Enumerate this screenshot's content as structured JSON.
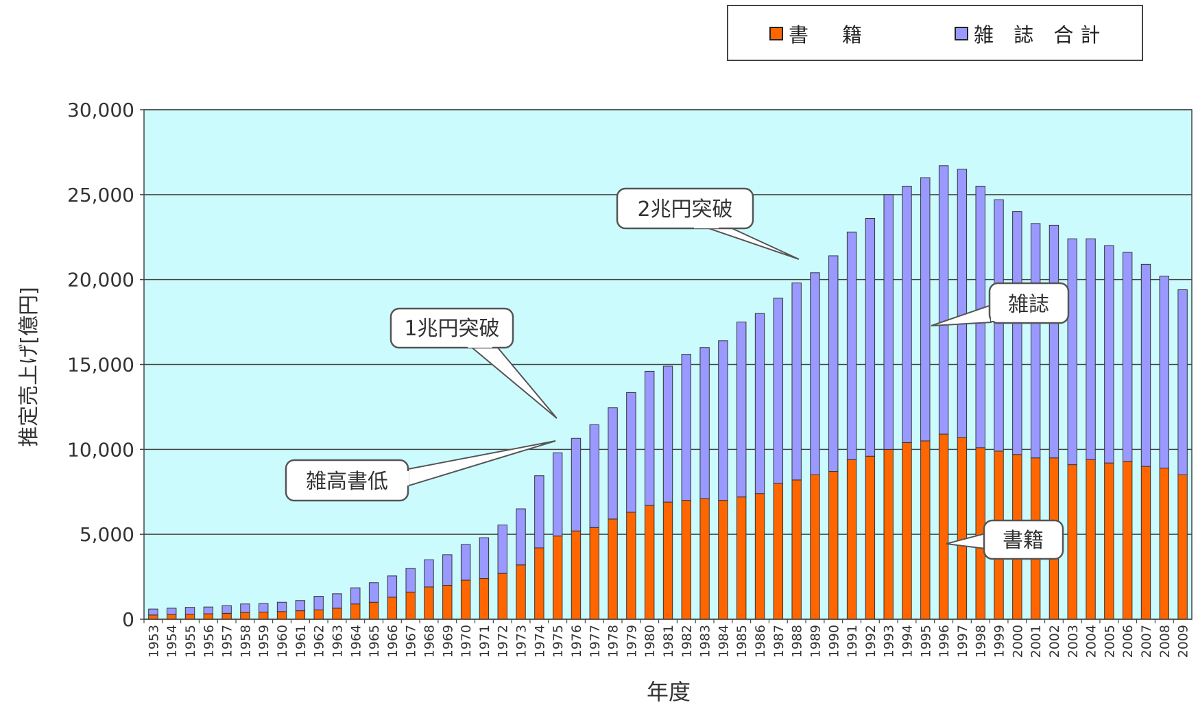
{
  "colors": {
    "plot_bg": "#ccfbfd",
    "books": "#ff6600",
    "magazines": "#9999ff",
    "gridline": "#444444",
    "bar_outline": "#333333"
  },
  "legend": {
    "books_label": "書　籍",
    "magazines_label": "雑 誌 合計"
  },
  "annotations": {
    "one_trillion": "1兆円突破",
    "two_trillion": "2兆円突破",
    "zakkou_shotei": "雑高書低",
    "magazines": "雑誌",
    "books": "書籍"
  },
  "chart_data": {
    "type": "bar",
    "stacked": true,
    "xlabel": "年度",
    "ylabel": "推定売上げ[億円]",
    "ylim": [
      0,
      30000
    ],
    "yticks": [
      0,
      5000,
      10000,
      15000,
      20000,
      25000,
      30000
    ],
    "ytick_labels": [
      "0",
      "5,000",
      "10,000",
      "15,000",
      "20,000",
      "25,000",
      "30,000"
    ],
    "grid": true,
    "legend_position": "top-right",
    "categories": [
      "1953",
      "1954",
      "1955",
      "1956",
      "1957",
      "1958",
      "1959",
      "1960",
      "1961",
      "1962",
      "1963",
      "1964",
      "1965",
      "1966",
      "1967",
      "1968",
      "1969",
      "1970",
      "1971",
      "1972",
      "1973",
      "1974",
      "1975",
      "1976",
      "1977",
      "1978",
      "1979",
      "1980",
      "1981",
      "1982",
      "1983",
      "1984",
      "1985",
      "1986",
      "1987",
      "1988",
      "1989",
      "1990",
      "1991",
      "1992",
      "1993",
      "1994",
      "1995",
      "1996",
      "1997",
      "1998",
      "1999",
      "2000",
      "2001",
      "2002",
      "2003",
      "2004",
      "2005",
      "2006",
      "2007",
      "2008",
      "2009"
    ],
    "series": [
      {
        "name": "書　籍",
        "values": [
          250,
          280,
          300,
          320,
          350,
          400,
          420,
          450,
          500,
          550,
          650,
          900,
          1000,
          1300,
          1600,
          1900,
          2000,
          2300,
          2400,
          2700,
          3200,
          4200,
          4900,
          5200,
          5400,
          5900,
          6300,
          6700,
          6900,
          7000,
          7100,
          7000,
          7200,
          7400,
          8000,
          8200,
          8500,
          8700,
          9400,
          9600,
          10000,
          10400,
          10500,
          10900,
          10700,
          10100,
          9900,
          9700,
          9500,
          9500,
          9100,
          9400,
          9200,
          9300,
          9000,
          8900,
          8500
        ]
      },
      {
        "name": "雑 誌 合計",
        "values": [
          350,
          370,
          400,
          400,
          450,
          500,
          500,
          550,
          600,
          800,
          850,
          950,
          1150,
          1250,
          1400,
          1600,
          1800,
          2100,
          2400,
          2850,
          3300,
          4250,
          4900,
          5450,
          6050,
          6550,
          7050,
          7900,
          8000,
          8600,
          8900,
          9400,
          10300,
          10600,
          10900,
          11600,
          11900,
          12700,
          13400,
          14000,
          15000,
          15100,
          15500,
          15800,
          15800,
          15400,
          14800,
          14300,
          13800,
          13700,
          13300,
          13000,
          12800,
          12300,
          11900,
          11300,
          10900
        ]
      }
    ]
  }
}
